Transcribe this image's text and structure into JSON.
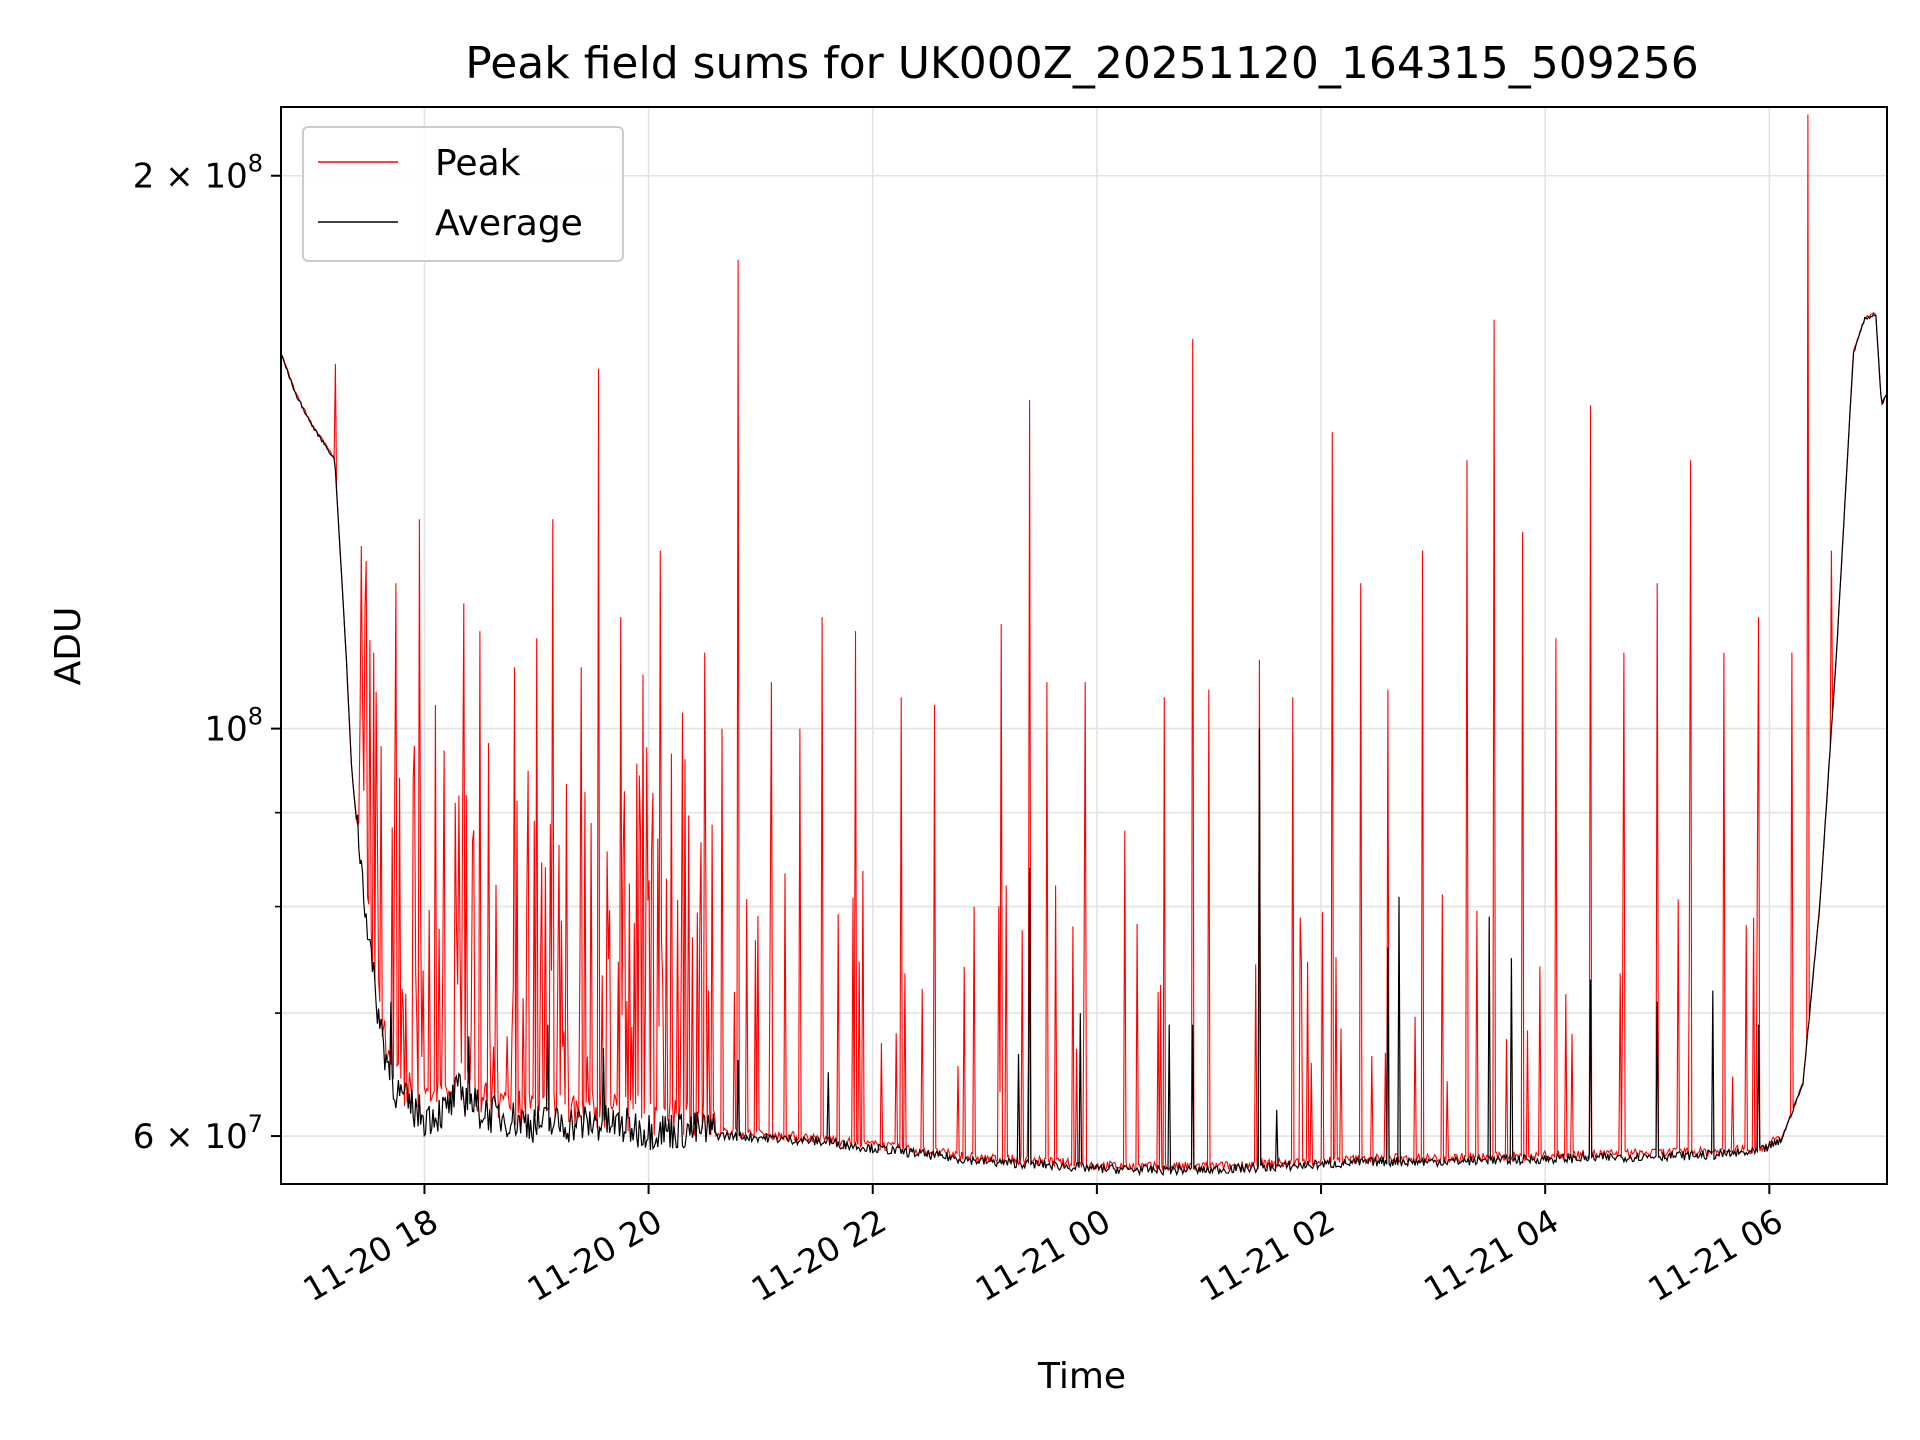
{
  "chart_data": {
    "type": "line",
    "title": "Peak field sums for UK000Z_20251120_164315_509256",
    "xlabel": "Time",
    "ylabel": "ADU",
    "yscale": "log",
    "ylim": [
      56500000,
      218000000
    ],
    "xlim_hours": [
      16.72,
      31.05
    ],
    "grid": true,
    "legend": {
      "position": "top-left",
      "entries": [
        "Peak",
        "Average"
      ]
    },
    "x_ticks": [
      {
        "hour": 18,
        "label": "11-20 18"
      },
      {
        "hour": 20,
        "label": "11-20 20"
      },
      {
        "hour": 22,
        "label": "11-20 22"
      },
      {
        "hour": 24,
        "label": "11-21 00"
      },
      {
        "hour": 26,
        "label": "11-21 02"
      },
      {
        "hour": 28,
        "label": "11-21 04"
      },
      {
        "hour": 30,
        "label": "11-21 06"
      }
    ],
    "y_ticks": [
      {
        "value": 60000000,
        "base": "6 × 10",
        "exp": "7"
      },
      {
        "value": 100000000,
        "base": "10",
        "exp": "8"
      },
      {
        "value": 200000000,
        "base": "2 × 10",
        "exp": "8"
      }
    ],
    "y_minor_ticks": [
      70000000,
      80000000,
      90000000
    ],
    "series": [
      {
        "name": "Average",
        "color": "#000000",
        "x_hours": [
          16.72,
          16.85,
          17.0,
          17.1,
          17.2,
          17.3,
          17.35,
          17.45,
          17.55,
          17.65,
          17.75,
          17.85,
          18.0,
          18.2,
          18.3,
          18.5,
          18.7,
          19.0,
          19.3,
          19.6,
          20.0,
          20.5,
          21.0,
          21.5,
          22.0,
          22.5,
          23.0,
          23.5,
          24.0,
          24.5,
          25.0,
          25.5,
          26.0,
          26.5,
          27.0,
          27.5,
          28.0,
          28.5,
          29.0,
          29.5,
          29.9,
          30.1,
          30.3,
          30.45,
          30.6,
          30.75,
          30.85,
          30.95,
          31.0,
          31.05
        ],
        "values": [
          160000000,
          152000000,
          146000000,
          143000000,
          140000000,
          110000000,
          95000000,
          82000000,
          72000000,
          66000000,
          63000000,
          62000000,
          61000000,
          61500000,
          63000000,
          61500000,
          61000000,
          60500000,
          60500000,
          60500000,
          60000000,
          60000000,
          59800000,
          59500000,
          59000000,
          58500000,
          58000000,
          57800000,
          57500000,
          57400000,
          57400000,
          57600000,
          57800000,
          58000000,
          58000000,
          58100000,
          58200000,
          58300000,
          58400000,
          58500000,
          58700000,
          59500000,
          64000000,
          80000000,
          110000000,
          160000000,
          167000000,
          168000000,
          150000000,
          152000000
        ],
        "spikes": [
          {
            "hour": 17.7,
            "value": 71000000
          },
          {
            "hour": 18.4,
            "value": 68000000
          },
          {
            "hour": 19.1,
            "value": 69000000
          },
          {
            "hour": 19.6,
            "value": 67000000
          },
          {
            "hour": 20.8,
            "value": 66000000
          },
          {
            "hour": 21.6,
            "value": 65000000
          },
          {
            "hour": 23.3,
            "value": 66500000
          },
          {
            "hour": 23.4,
            "value": 84000000
          },
          {
            "hour": 23.85,
            "value": 70000000
          },
          {
            "hour": 24.65,
            "value": 69000000
          },
          {
            "hour": 24.85,
            "value": 69000000
          },
          {
            "hour": 25.45,
            "value": 100000000
          },
          {
            "hour": 25.6,
            "value": 62000000
          },
          {
            "hour": 26.6,
            "value": 76000000
          },
          {
            "hour": 26.7,
            "value": 81000000
          },
          {
            "hour": 27.5,
            "value": 79000000
          },
          {
            "hour": 27.7,
            "value": 75000000
          },
          {
            "hour": 28.4,
            "value": 73000000
          },
          {
            "hour": 29.0,
            "value": 71000000
          },
          {
            "hour": 29.5,
            "value": 72000000
          },
          {
            "hour": 29.9,
            "value": 69000000
          }
        ]
      },
      {
        "name": "Peak",
        "color": "#ff0000",
        "baseline": "follows Average",
        "spikes": [
          {
            "hour": 17.2,
            "value": 158000000
          },
          {
            "hour": 17.45,
            "value": 104000000
          },
          {
            "hour": 17.55,
            "value": 110000000
          },
          {
            "hour": 17.75,
            "value": 120000000
          },
          {
            "hour": 17.95,
            "value": 130000000
          },
          {
            "hour": 18.1,
            "value": 103000000
          },
          {
            "hour": 18.35,
            "value": 117000000
          },
          {
            "hour": 18.5,
            "value": 113000000
          },
          {
            "hour": 18.8,
            "value": 108000000
          },
          {
            "hour": 19.0,
            "value": 112000000
          },
          {
            "hour": 19.15,
            "value": 130000000
          },
          {
            "hour": 19.4,
            "value": 108000000
          },
          {
            "hour": 19.55,
            "value": 157000000
          },
          {
            "hour": 19.75,
            "value": 115000000
          },
          {
            "hour": 19.95,
            "value": 107000000
          },
          {
            "hour": 20.1,
            "value": 125000000
          },
          {
            "hour": 20.3,
            "value": 102000000
          },
          {
            "hour": 20.5,
            "value": 110000000
          },
          {
            "hour": 20.65,
            "value": 100000000
          },
          {
            "hour": 20.8,
            "value": 180000000
          },
          {
            "hour": 21.1,
            "value": 106000000
          },
          {
            "hour": 21.35,
            "value": 100000000
          },
          {
            "hour": 21.55,
            "value": 115000000
          },
          {
            "hour": 21.85,
            "value": 113000000
          },
          {
            "hour": 22.25,
            "value": 104000000
          },
          {
            "hour": 22.55,
            "value": 103000000
          },
          {
            "hour": 22.9,
            "value": 80000000
          },
          {
            "hour": 23.15,
            "value": 114000000
          },
          {
            "hour": 23.4,
            "value": 151000000
          },
          {
            "hour": 23.55,
            "value": 106000000
          },
          {
            "hour": 23.9,
            "value": 106000000
          },
          {
            "hour": 24.25,
            "value": 88000000
          },
          {
            "hour": 24.6,
            "value": 104000000
          },
          {
            "hour": 24.85,
            "value": 163000000
          },
          {
            "hour": 25.0,
            "value": 105000000
          },
          {
            "hour": 25.45,
            "value": 109000000
          },
          {
            "hour": 25.75,
            "value": 104000000
          },
          {
            "hour": 26.1,
            "value": 145000000
          },
          {
            "hour": 26.35,
            "value": 120000000
          },
          {
            "hour": 26.6,
            "value": 105000000
          },
          {
            "hour": 26.9,
            "value": 125000000
          },
          {
            "hour": 27.3,
            "value": 140000000
          },
          {
            "hour": 27.55,
            "value": 167000000
          },
          {
            "hour": 27.8,
            "value": 128000000
          },
          {
            "hour": 28.1,
            "value": 112000000
          },
          {
            "hour": 28.4,
            "value": 150000000
          },
          {
            "hour": 28.7,
            "value": 110000000
          },
          {
            "hour": 29.0,
            "value": 120000000
          },
          {
            "hour": 29.3,
            "value": 140000000
          },
          {
            "hour": 29.6,
            "value": 110000000
          },
          {
            "hour": 29.9,
            "value": 115000000
          },
          {
            "hour": 30.2,
            "value": 110000000
          },
          {
            "hour": 30.35,
            "value": 216000000
          },
          {
            "hour": 30.55,
            "value": 125000000
          }
        ]
      }
    ]
  }
}
